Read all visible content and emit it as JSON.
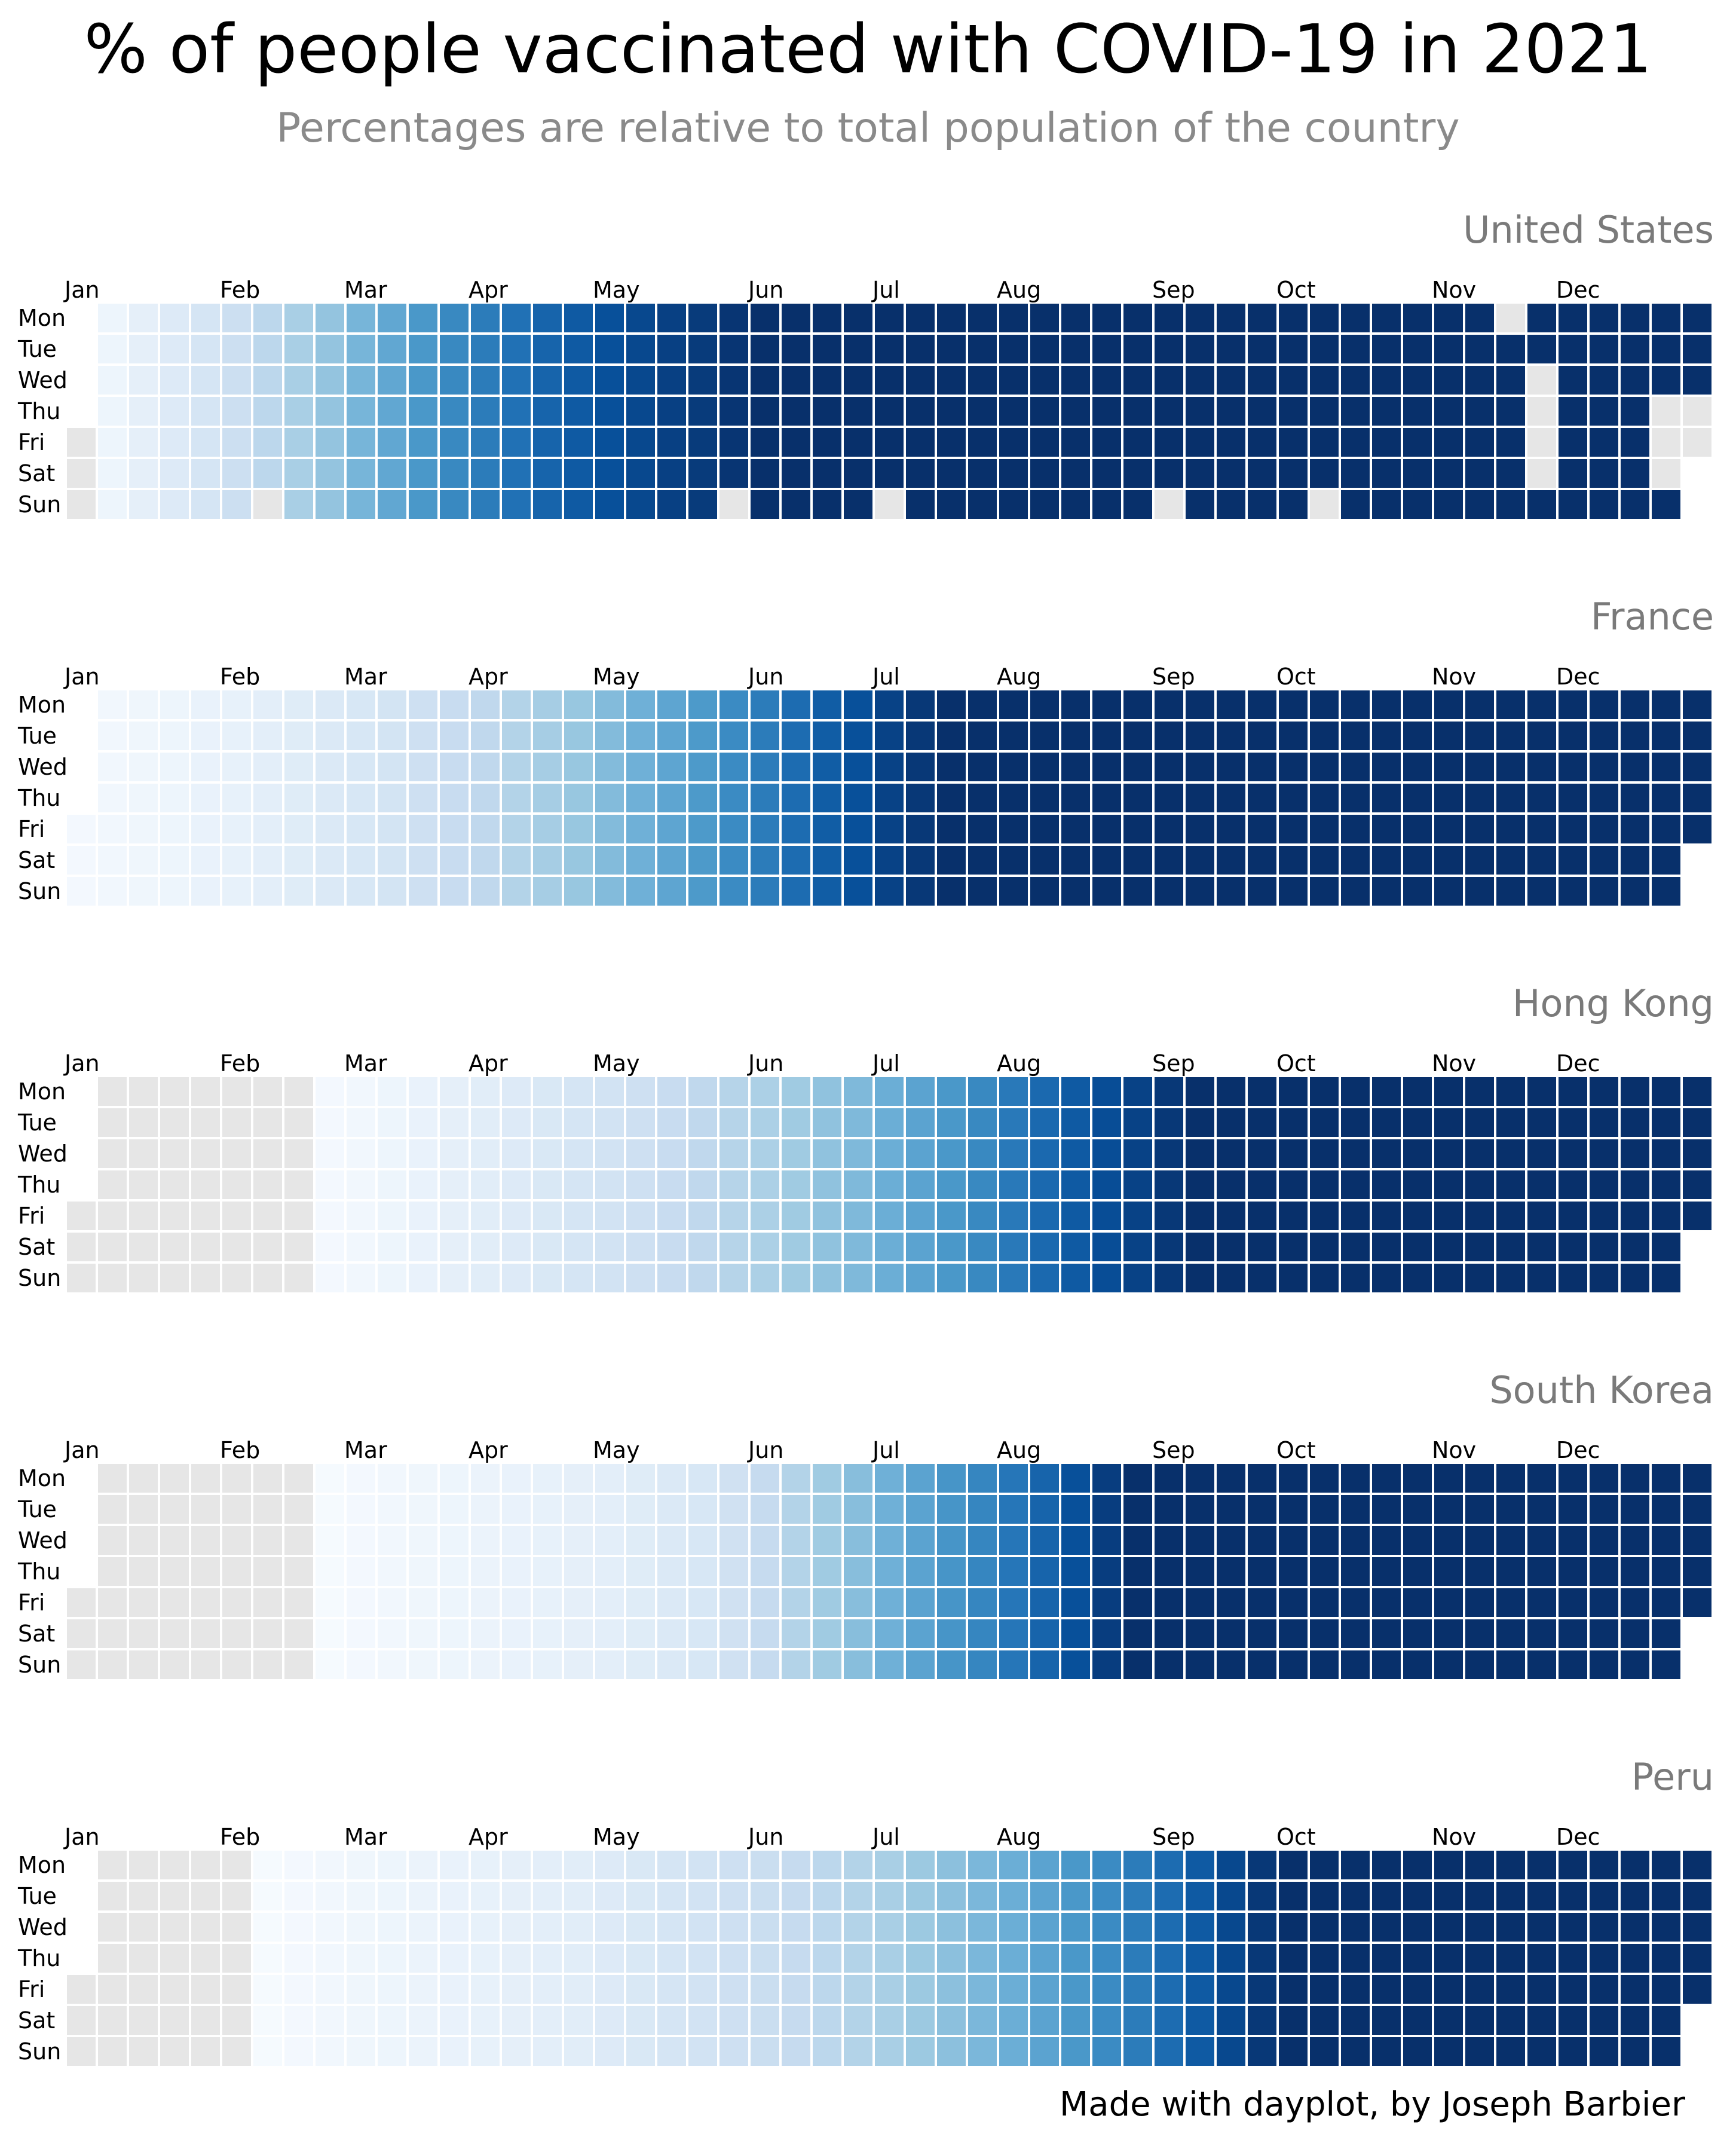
{
  "title": "% of people vaccinated with COVID-19 in 2021",
  "subtitle": "Percentages are relative to total population of the country",
  "credit": "Made with dayplot, by Joseph Barbier",
  "colors": {
    "missing": "#e6e6e6",
    "scale": [
      "#f7fbff",
      "#deebf7",
      "#c6dbef",
      "#9ecae1",
      "#6baed6",
      "#4292c6",
      "#2171b5",
      "#08519c",
      "#08306b"
    ]
  },
  "chart_data": [
    {
      "type": "heatmap",
      "title": "United States",
      "year": 2021,
      "month_labels": [
        "Jan",
        "Feb",
        "Mar",
        "Apr",
        "May",
        "Jun",
        "Jul",
        "Aug",
        "Sep",
        "Oct",
        "Nov",
        "Dec"
      ],
      "weekday_labels": [
        "Mon",
        "Tue",
        "Wed",
        "Thu",
        "Fri",
        "Sat",
        "Sun"
      ],
      "first_data_week": 1,
      "weekly_intensity": [
        0.05,
        0.09,
        0.13,
        0.17,
        0.22,
        0.28,
        0.34,
        0.4,
        0.47,
        0.53,
        0.6,
        0.66,
        0.71,
        0.75,
        0.8,
        0.84,
        0.88,
        0.91,
        0.94,
        0.96,
        0.98,
        1,
        1,
        1,
        1,
        1,
        1,
        1,
        1,
        1,
        1,
        1,
        1,
        1,
        1,
        1,
        1,
        1,
        1,
        1,
        1,
        1,
        1,
        1,
        1,
        1,
        1,
        1,
        1,
        1,
        1,
        1
      ],
      "missing_days": [
        "2021-02-14",
        "2021-05-30",
        "2021-07-04",
        "2021-09-05",
        "2021-10-10",
        "2021-11-15",
        "2021-11-24",
        "2021-11-25",
        "2021-11-26",
        "2021-11-27",
        "2021-12-23",
        "2021-12-24",
        "2021-12-25",
        "2021-12-30",
        "2021-12-31"
      ]
    },
    {
      "type": "heatmap",
      "title": "France",
      "year": 2021,
      "month_labels": [
        "Jan",
        "Feb",
        "Mar",
        "Apr",
        "May",
        "Jun",
        "Jul",
        "Aug",
        "Sep",
        "Oct",
        "Nov",
        "Dec"
      ],
      "weekday_labels": [
        "Mon",
        "Tue",
        "Wed",
        "Thu",
        "Fri",
        "Sat",
        "Sun"
      ],
      "first_data_week": 0,
      "weekly_intensity": [
        0.02,
        0.03,
        0.04,
        0.05,
        0.07,
        0.08,
        0.1,
        0.12,
        0.14,
        0.16,
        0.18,
        0.21,
        0.24,
        0.27,
        0.31,
        0.35,
        0.39,
        0.44,
        0.49,
        0.54,
        0.59,
        0.65,
        0.71,
        0.77,
        0.83,
        0.88,
        0.93,
        0.97,
        1,
        1,
        1,
        1,
        1,
        1,
        1,
        1,
        1,
        1,
        1,
        1,
        1,
        1,
        1,
        1,
        1,
        1,
        1,
        1,
        1,
        1,
        1,
        1,
        1
      ],
      "missing_days": []
    },
    {
      "type": "heatmap",
      "title": "Hong Kong",
      "year": 2021,
      "month_labels": [
        "Jan",
        "Feb",
        "Mar",
        "Apr",
        "May",
        "Jun",
        "Jul",
        "Aug",
        "Sep",
        "Oct",
        "Nov",
        "Dec"
      ],
      "weekday_labels": [
        "Mon",
        "Tue",
        "Wed",
        "Thu",
        "Fri",
        "Sat",
        "Sun"
      ],
      "first_data_week": 8,
      "weekly_intensity": [
        0.02,
        0.03,
        0.05,
        0.07,
        0.09,
        0.11,
        0.13,
        0.15,
        0.17,
        0.19,
        0.21,
        0.24,
        0.27,
        0.3,
        0.33,
        0.37,
        0.41,
        0.45,
        0.5,
        0.55,
        0.6,
        0.66,
        0.72,
        0.78,
        0.84,
        0.89,
        0.93,
        0.97,
        1,
        1,
        1,
        1,
        1,
        1,
        1,
        1,
        1,
        1,
        1,
        1,
        1,
        1,
        1,
        1,
        1
      ],
      "missing_days": []
    },
    {
      "type": "heatmap",
      "title": "South Korea",
      "year": 2021,
      "month_labels": [
        "Jan",
        "Feb",
        "Mar",
        "Apr",
        "May",
        "Jun",
        "Jul",
        "Aug",
        "Sep",
        "Oct",
        "Nov",
        "Dec"
      ],
      "weekday_labels": [
        "Mon",
        "Tue",
        "Wed",
        "Thu",
        "Fri",
        "Sat",
        "Sun"
      ],
      "first_data_week": 8,
      "weekly_intensity": [
        0.01,
        0.02,
        0.03,
        0.04,
        0.05,
        0.06,
        0.07,
        0.08,
        0.09,
        0.1,
        0.12,
        0.14,
        0.16,
        0.2,
        0.25,
        0.31,
        0.37,
        0.43,
        0.49,
        0.55,
        0.61,
        0.67,
        0.73,
        0.8,
        0.88,
        0.95,
        1,
        1,
        1,
        1,
        1,
        1,
        1,
        1,
        1,
        1,
        1,
        1,
        1,
        1,
        1,
        1,
        1,
        1,
        1
      ],
      "missing_days": []
    },
    {
      "type": "heatmap",
      "title": "Peru",
      "year": 2021,
      "month_labels": [
        "Jan",
        "Feb",
        "Mar",
        "Apr",
        "May",
        "Jun",
        "Jul",
        "Aug",
        "Sep",
        "Oct",
        "Nov",
        "Dec"
      ],
      "weekday_labels": [
        "Mon",
        "Tue",
        "Wed",
        "Thu",
        "Fri",
        "Sat",
        "Sun"
      ],
      "first_data_week": 6,
      "weekly_intensity": [
        0.01,
        0.02,
        0.03,
        0.04,
        0.05,
        0.06,
        0.07,
        0.08,
        0.09,
        0.1,
        0.11,
        0.13,
        0.15,
        0.17,
        0.19,
        0.21,
        0.23,
        0.25,
        0.28,
        0.31,
        0.34,
        0.38,
        0.42,
        0.46,
        0.5,
        0.55,
        0.6,
        0.65,
        0.71,
        0.77,
        0.84,
        0.91,
        0.97,
        1,
        1,
        1,
        1,
        1,
        1,
        1,
        1,
        1,
        1,
        1,
        1,
        1,
        1
      ],
      "missing_days": []
    }
  ]
}
